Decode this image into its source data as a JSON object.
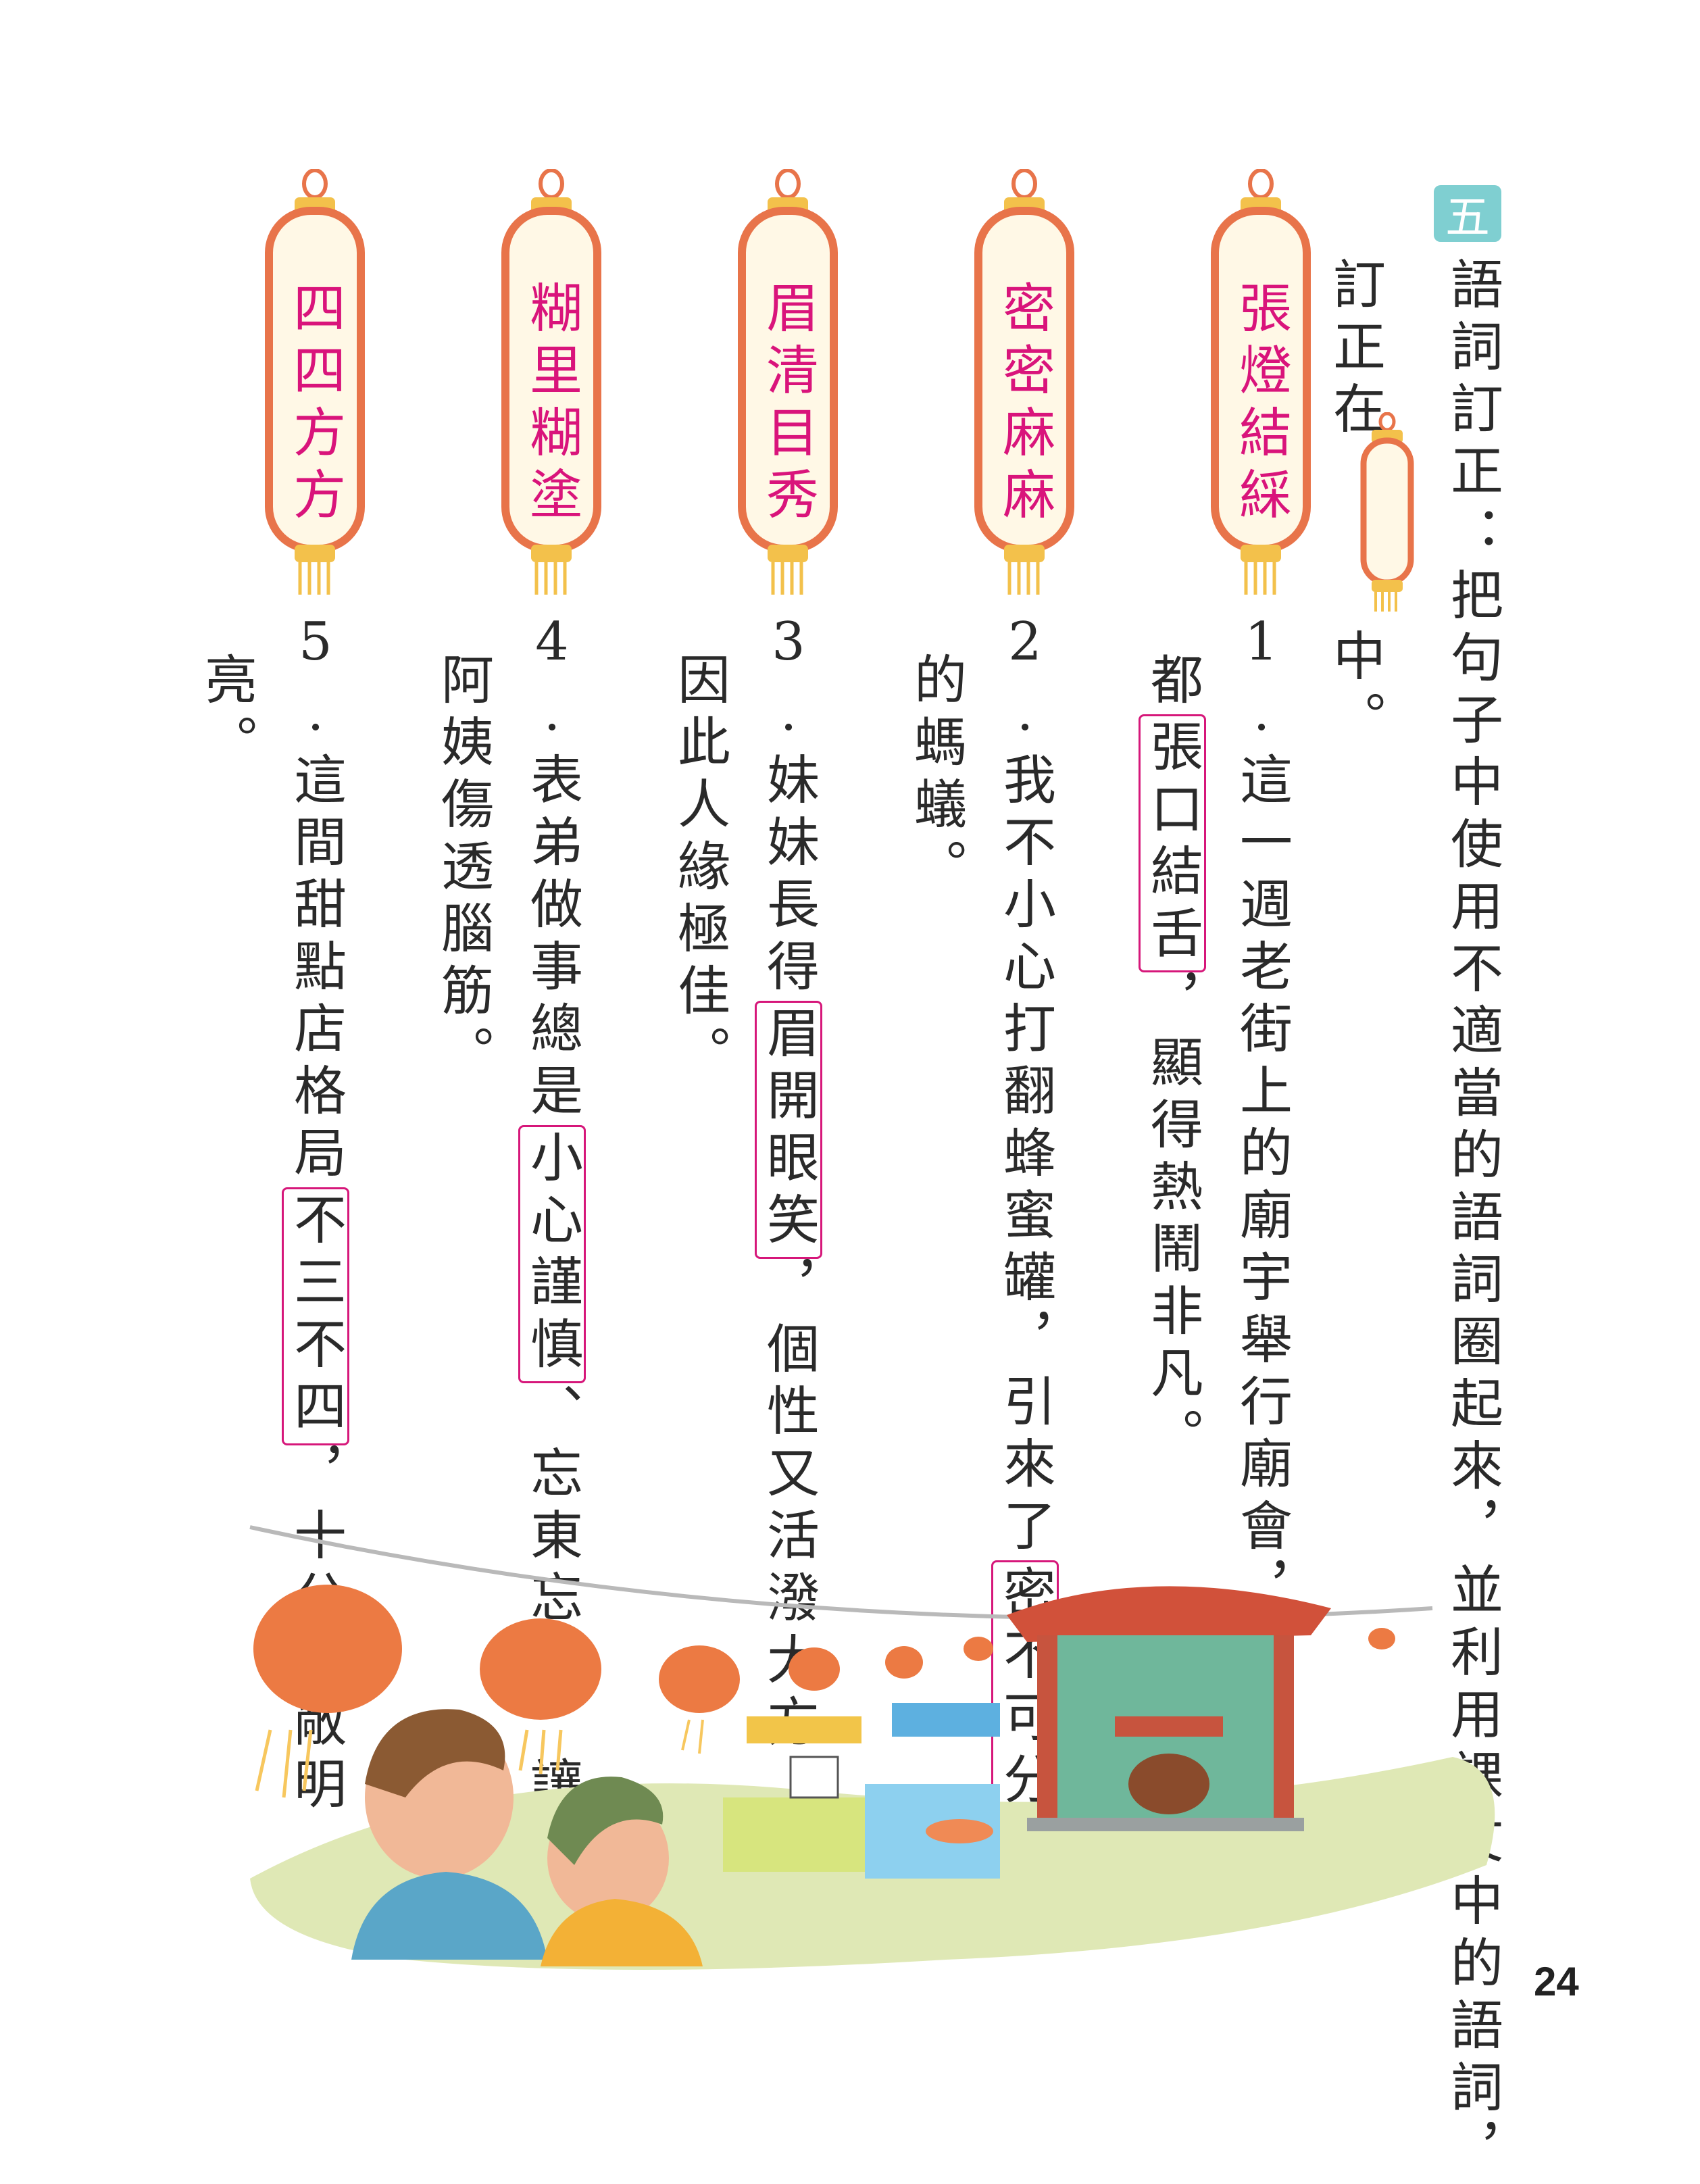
{
  "section": {
    "badge": "五",
    "instruction_line1": "語詞訂正：把句子中使用不適當的語詞圈起來，並利用課文中的語詞，",
    "instruction_line2a": "訂正在",
    "instruction_line2b": "中。"
  },
  "lanterns": [
    "張燈結綵",
    "密密麻麻",
    "眉清目秀",
    "糊里糊塗",
    "四四方方"
  ],
  "items": [
    {
      "num": "1.",
      "pre": "這一週老街上的廟宇舉行廟會，商店全",
      "line2pre": "都",
      "circled": "張口結舌",
      "post": "，顯得熱鬧非凡。"
    },
    {
      "num": "2.",
      "pre": "我不小心打翻蜂蜜罐，引來了",
      "circled": "密不可分",
      "line2": "的螞蟻。"
    },
    {
      "num": "3.",
      "pre": "妹妹長得",
      "circled": "眉開眼笑",
      "post": "，個性又活潑大方，",
      "line2": "因此人緣極佳。"
    },
    {
      "num": "4.",
      "pre": "表弟做事總是",
      "circled": "小心謹慎",
      "post": "、忘東忘西，讓",
      "line2": "阿姨傷透腦筋。"
    },
    {
      "num": "5.",
      "pre": "這間甜點店格局",
      "circled": "不三不四",
      "post": "，十分寬敞明",
      "line2": "亮。"
    }
  ],
  "page_number": "24",
  "colors": {
    "accent_pink": "#d9147b",
    "badge_teal": "#7fcfd1",
    "lantern_orange": "#e8744a",
    "lantern_fill": "#fff8e6"
  }
}
